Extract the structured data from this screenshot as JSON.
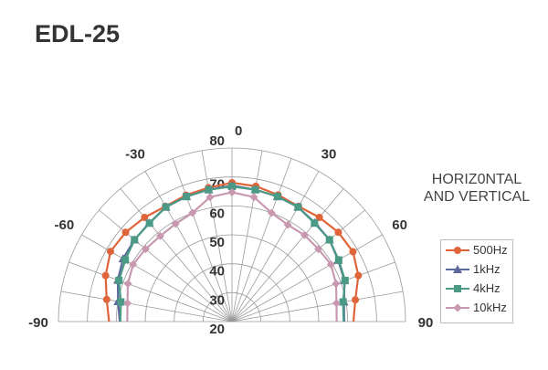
{
  "title": "EDL-25",
  "chart_data": {
    "type": "polar-line",
    "title": "EDL-25",
    "legend_title": "HORIZ0NTAL AND VERTICAL",
    "legend_placement": "right",
    "angle_range": [
      -90,
      90
    ],
    "angle_tick_labels": [
      "-90",
      "-60",
      "-30",
      "0",
      "30",
      "60",
      "90"
    ],
    "angle_ticks": [
      -90,
      -60,
      -30,
      0,
      30,
      60,
      90
    ],
    "radial_range": [
      20,
      80
    ],
    "radial_ticks": [
      20,
      30,
      40,
      50,
      60,
      70,
      80
    ],
    "radial_tick_labels": [
      "20",
      "30",
      "40",
      "50",
      "60",
      "70",
      "80"
    ],
    "grid": true,
    "angles": [
      -90,
      -80,
      -70,
      -60,
      -50,
      -40,
      -30,
      -20,
      -10,
      0,
      10,
      20,
      30,
      40,
      50,
      60,
      70,
      80,
      90
    ],
    "series": [
      {
        "name": "500Hz",
        "color": "#e0643a",
        "marker": "circle",
        "values": [
          62.5,
          64,
          66.5,
          68.5,
          68,
          67,
          66,
          66.5,
          67,
          68,
          67.5,
          66.6,
          66,
          67,
          68,
          68.3,
          66.5,
          63.3,
          62
        ]
      },
      {
        "name": "1kHz",
        "color": "#5b6a9c",
        "marker": "triangle",
        "values": [
          58.8,
          60,
          62,
          63.5,
          64,
          64.5,
          65.7,
          66,
          66.3,
          67,
          66.3,
          66,
          65.7,
          64.6,
          64,
          62.4,
          61.4,
          59.3,
          58.8
        ]
      },
      {
        "name": "4kHz",
        "color": "#4b9a86",
        "marker": "square",
        "values": [
          58.6,
          59,
          61.6,
          62.6,
          64,
          64.4,
          65.7,
          66,
          66.3,
          66.7,
          66.3,
          66,
          65.7,
          64.4,
          64,
          62.6,
          61.6,
          59,
          58.6
        ]
      },
      {
        "name": "10kHz",
        "color": "#c898b0",
        "marker": "diamond",
        "values": [
          56.2,
          56.7,
          58.3,
          59.5,
          59,
          58.6,
          59,
          60,
          63.7,
          64.7,
          63.7,
          60,
          58.6,
          59,
          59,
          59.5,
          58.3,
          56.7,
          56.2
        ]
      }
    ]
  }
}
